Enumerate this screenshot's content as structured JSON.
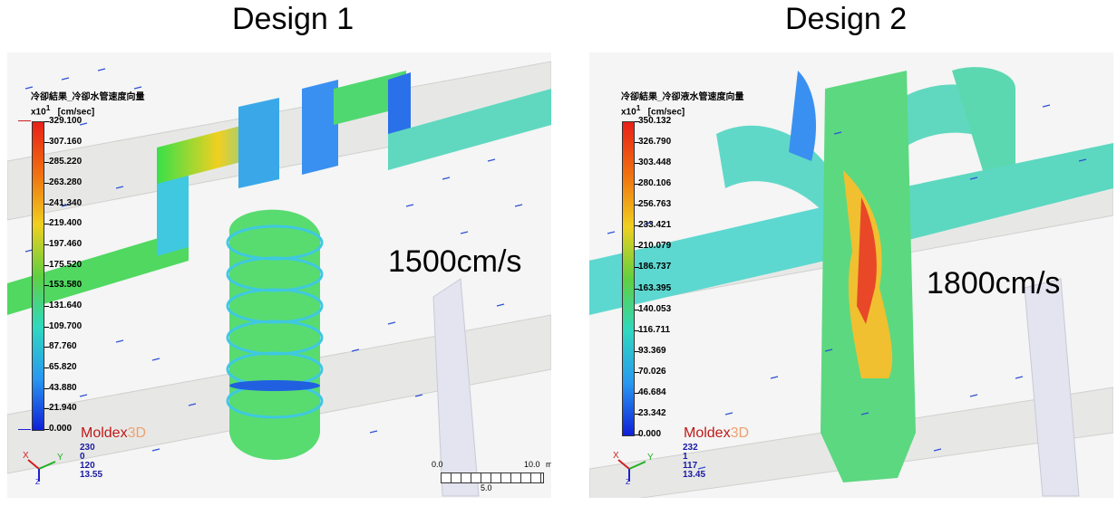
{
  "titles": {
    "left": "Design 1",
    "right": "Design 2"
  },
  "panels": [
    {
      "header": "冷卻結果_冷卻水管速度向量",
      "unit_prefix": "x10",
      "unit_exp": "1",
      "unit": "[cm/sec]",
      "ticks": [
        "329.100",
        "307.160",
        "285.220",
        "263.280",
        "241.340",
        "219.400",
        "197.460",
        "175.520",
        "153.580",
        "131.640",
        "109.700",
        "87.760",
        "65.820",
        "43.880",
        "21.940",
        "0.000"
      ],
      "brand_main": "Moldex",
      "brand_suffix": "3D",
      "view_nums": [
        "230",
        "0",
        "120",
        "13.55"
      ],
      "speed_label": "1500cm/s",
      "scale": {
        "start": "0.0",
        "end": "10.0",
        "unit": "m",
        "mid": "5.0"
      }
    },
    {
      "header": "冷卻結果_冷卻液水管速度向量",
      "unit_prefix": "x10",
      "unit_exp": "1",
      "unit": "[cm/sec]",
      "ticks": [
        "350.132",
        "326.790",
        "303.448",
        "280.106",
        "256.763",
        "233.421",
        "210.079",
        "186.737",
        "163.395",
        "140.053",
        "116.711",
        "93.369",
        "70.026",
        "46.684",
        "23.342",
        "0.000"
      ],
      "brand_main": "Moldex",
      "brand_suffix": "3D",
      "view_nums": [
        "232",
        "1",
        "117",
        "13.45"
      ],
      "speed_label": "1800cm/s"
    }
  ],
  "colors": {
    "max": "#e8201c",
    "mid": "#58d848",
    "min": "#1020d8"
  }
}
